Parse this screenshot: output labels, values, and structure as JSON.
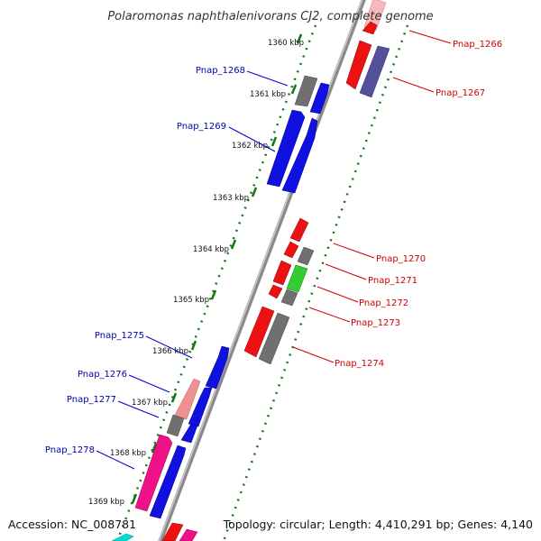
{
  "title": "Polaromonas naphthalenivorans CJ2, complete genome",
  "accession": "Accession: NC_008781",
  "topology": "Topology: circular; Length: 4,410,291 bp; Genes: 4,140",
  "colors": {
    "forward_label": "#0000aa",
    "reverse_label": "#cc0000",
    "blue": "#1010e0",
    "red": "#ee1111",
    "gray": "#707070",
    "slate": "#55509a",
    "pink": "#f09090",
    "magenta": "#ee1188",
    "green": "#33cc33",
    "cyan": "#00dddd",
    "ruler_green": "#117711"
  },
  "kbp_labels": [
    "1360 kbp",
    "1361 kbp",
    "1362 kbp",
    "1363 kbp",
    "1364 kbp",
    "1365 kbp",
    "1366 kbp",
    "1367 kbp",
    "1368 kbp",
    "1369 kbp"
  ],
  "genes_forward": [
    {
      "label": "Pnap_1268"
    },
    {
      "label": "Pnap_1269"
    },
    {
      "label": "Pnap_1275"
    },
    {
      "label": "Pnap_1276"
    },
    {
      "label": "Pnap_1277"
    },
    {
      "label": "Pnap_1278"
    }
  ],
  "genes_reverse": [
    {
      "label": "Pnap_1266"
    },
    {
      "label": "Pnap_1267"
    },
    {
      "label": "Pnap_1270"
    },
    {
      "label": "Pnap_1271"
    },
    {
      "label": "Pnap_1272"
    },
    {
      "label": "Pnap_1273"
    },
    {
      "label": "Pnap_1274"
    }
  ]
}
